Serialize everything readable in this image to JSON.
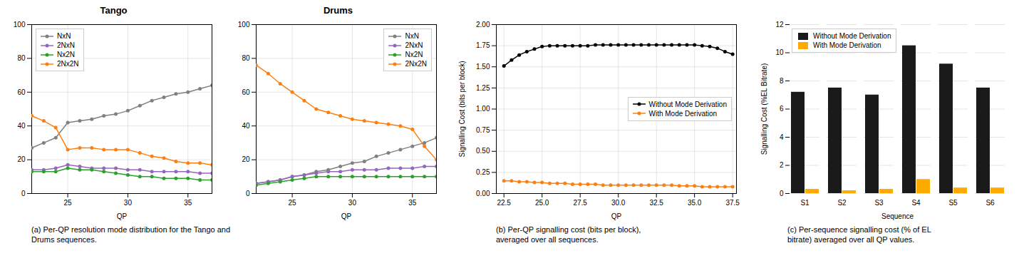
{
  "chart_data": [
    {
      "type": "line",
      "title": "Tango",
      "xlabel": "QP",
      "x": [
        22,
        23,
        24,
        25,
        26,
        27,
        28,
        29,
        30,
        31,
        32,
        33,
        34,
        35,
        36,
        37
      ],
      "xlim": [
        22,
        37
      ],
      "xticks": [
        25,
        30,
        35
      ],
      "ylim": [
        0,
        100
      ],
      "yticks": [
        0,
        20,
        40,
        60,
        80,
        100
      ],
      "grid": true,
      "legend": "upper left",
      "marker": "circle",
      "caption": "(a) Per-QP resolution mode distribution for the Tango and\nDrums sequences.",
      "series": [
        {
          "name": "NxN",
          "color": "#808080",
          "values": [
            27,
            30,
            33,
            42,
            43,
            44,
            46,
            47,
            49,
            52,
            55,
            57,
            59,
            60,
            62,
            64
          ]
        },
        {
          "name": "2NxN",
          "color": "#9467bd",
          "values": [
            14,
            14,
            15,
            17,
            16,
            15,
            15,
            15,
            14,
            14,
            13,
            13,
            13,
            13,
            12,
            12
          ]
        },
        {
          "name": "Nx2N",
          "color": "#2ca02c",
          "values": [
            13,
            13,
            13,
            15,
            14,
            14,
            13,
            12,
            11,
            10,
            10,
            9,
            9,
            9,
            8,
            8
          ]
        },
        {
          "name": "2Nx2N",
          "color": "#ff7f0e",
          "values": [
            46,
            43,
            39,
            26,
            27,
            27,
            26,
            26,
            26,
            24,
            22,
            21,
            19,
            18,
            18,
            17
          ]
        }
      ]
    },
    {
      "type": "line",
      "title": "Drums",
      "xlabel": "QP",
      "x": [
        22,
        23,
        24,
        25,
        26,
        27,
        28,
        29,
        30,
        31,
        32,
        33,
        34,
        35,
        36,
        37
      ],
      "xlim": [
        22,
        37
      ],
      "xticks": [
        25,
        30,
        35
      ],
      "ylim": [
        0,
        100
      ],
      "yticks": [
        0,
        20,
        40,
        60,
        80,
        100
      ],
      "grid": true,
      "legend": "upper right",
      "marker": "circle",
      "series": [
        {
          "name": "NxN",
          "color": "#808080",
          "values": [
            6,
            7,
            8,
            10,
            11,
            13,
            14,
            16,
            18,
            19,
            22,
            24,
            26,
            28,
            30,
            33
          ]
        },
        {
          "name": "2NxN",
          "color": "#9467bd",
          "values": [
            6,
            7,
            8,
            10,
            11,
            12,
            13,
            13,
            14,
            14,
            14,
            15,
            15,
            15,
            16,
            16
          ]
        },
        {
          "name": "Nx2N",
          "color": "#2ca02c",
          "values": [
            5,
            6,
            7,
            8,
            9,
            10,
            10,
            10,
            10,
            10,
            10,
            10,
            10,
            10,
            10,
            10
          ]
        },
        {
          "name": "2Nx2N",
          "color": "#ff7f0e",
          "values": [
            76,
            71,
            65,
            60,
            55,
            50,
            48,
            46,
            44,
            43,
            42,
            41,
            40,
            38,
            28,
            20
          ]
        }
      ]
    },
    {
      "type": "line",
      "xlabel": "QP",
      "ylabel": "Signalling Cost (bits per block)",
      "x": [
        22.5,
        23.0,
        23.5,
        24.0,
        24.5,
        25.0,
        25.5,
        26.0,
        26.5,
        27.0,
        27.5,
        28.0,
        28.5,
        29.0,
        29.5,
        30.0,
        30.5,
        31.0,
        31.5,
        32.0,
        32.5,
        33.0,
        33.5,
        34.0,
        34.5,
        35.0,
        35.5,
        36.0,
        36.5,
        37.0,
        37.5
      ],
      "xlim": [
        22.0,
        37.75
      ],
      "xticks": [
        22.5,
        {
          "value": 25,
          "label": "25.0"
        },
        27.5,
        {
          "value": 30,
          "label": "30.0"
        },
        32.5,
        {
          "value": 35,
          "label": "35.0"
        },
        37.5
      ],
      "ylim": [
        0,
        2
      ],
      "yticks": [
        {
          "value": 0,
          "label": "0.00"
        },
        {
          "value": 0.25,
          "label": "0.25"
        },
        {
          "value": 0.5,
          "label": "0.50"
        },
        {
          "value": 0.75,
          "label": "0.75"
        },
        {
          "value": 1,
          "label": "1.00"
        },
        {
          "value": 1.25,
          "label": "1.25"
        },
        {
          "value": 1.5,
          "label": "1.50"
        },
        {
          "value": 1.75,
          "label": "1.75"
        },
        {
          "value": 2,
          "label": "2.00"
        }
      ],
      "grid": true,
      "legend": "center right",
      "marker": "circle",
      "caption": "(b) Per-QP signalling cost (bits per block),\naveraged over all sequences.",
      "series": [
        {
          "name": "Without Mode Derivation",
          "color": "#000000",
          "values": [
            1.51,
            1.58,
            1.64,
            1.68,
            1.71,
            1.74,
            1.75,
            1.75,
            1.75,
            1.75,
            1.75,
            1.75,
            1.76,
            1.76,
            1.76,
            1.76,
            1.76,
            1.76,
            1.76,
            1.76,
            1.76,
            1.76,
            1.76,
            1.76,
            1.76,
            1.76,
            1.75,
            1.74,
            1.72,
            1.68,
            1.65
          ]
        },
        {
          "name": "With Mode Derivation",
          "color": "#ff7f0e",
          "values": [
            0.15,
            0.15,
            0.14,
            0.14,
            0.13,
            0.13,
            0.12,
            0.12,
            0.12,
            0.11,
            0.11,
            0.11,
            0.11,
            0.1,
            0.1,
            0.1,
            0.1,
            0.1,
            0.1,
            0.1,
            0.1,
            0.1,
            0.1,
            0.09,
            0.09,
            0.09,
            0.08,
            0.08,
            0.08,
            0.08,
            0.08
          ]
        }
      ]
    },
    {
      "type": "bar",
      "xlabel": "Sequence",
      "ylabel": "Signalling Cost (%EL Bitrate)",
      "categories": [
        "S1",
        "S2",
        "S3",
        "S4",
        "S5",
        "S6"
      ],
      "ylim": [
        0,
        12
      ],
      "yticks": [
        0,
        2,
        4,
        6,
        8,
        10,
        12
      ],
      "grid": "y",
      "legend": "upper left",
      "caption": "(c) Per-sequence signalling cost (% of EL\nbitrate) averaged over all QP values.",
      "series": [
        {
          "name": "Without Mode Derivation",
          "color": "#1a1a1a",
          "values": [
            7.2,
            7.5,
            7.0,
            10.5,
            9.2,
            7.5
          ]
        },
        {
          "name": "With Mode Derivation",
          "color": "#ffaa00",
          "values": [
            0.3,
            0.2,
            0.3,
            1.0,
            0.4,
            0.4
          ]
        }
      ]
    }
  ]
}
